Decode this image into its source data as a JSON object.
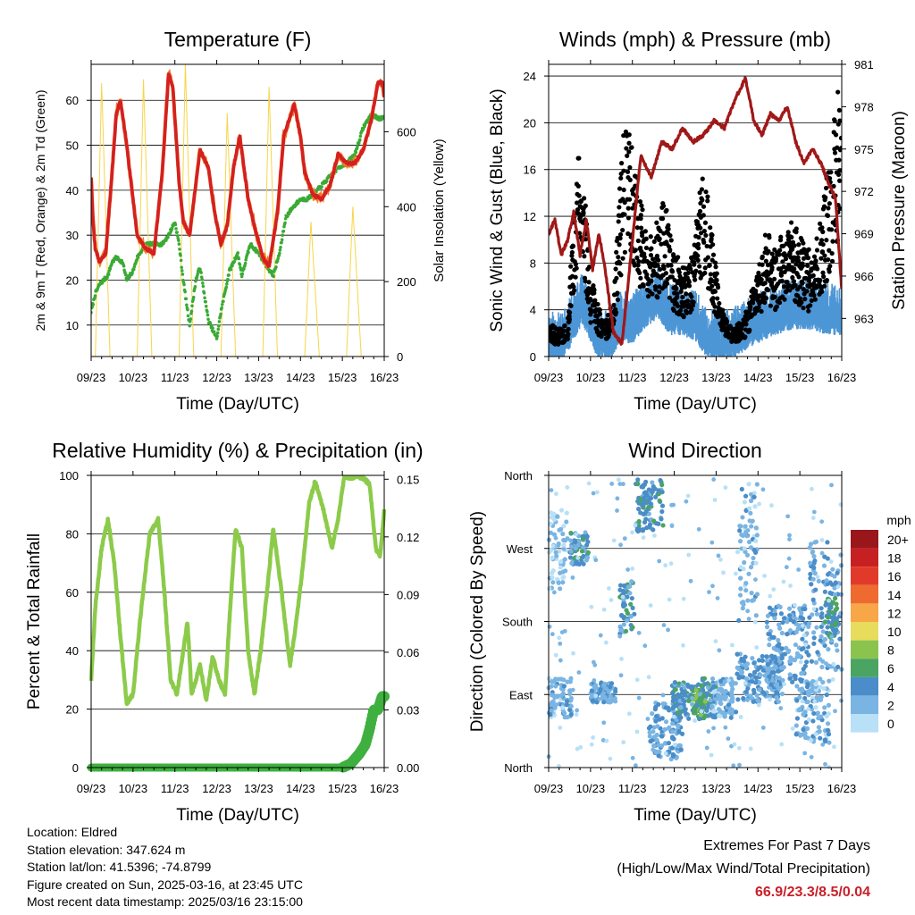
{
  "panels": {
    "temperature": {
      "title": "Temperature (F)",
      "xlabel": "Time (Day/UTC)",
      "ylabel_left": "2m & 9m T (Red, Orange) & 2m Td (Green)",
      "ylabel_right": "Solar Insolation (Yellow)"
    },
    "winds": {
      "title": "Winds (mph) & Pressure (mb)",
      "xlabel": "Time (Day/UTC)",
      "ylabel_left": "Sonic Wind & Gust (Blue, Black)",
      "ylabel_right": "Station Pressure (Maroon)"
    },
    "humidity": {
      "title": "Relative Humidity (%) & Precipitation (in)",
      "xlabel": "Time (Day/UTC)",
      "ylabel_left": "Percent & Total Rainfall"
    },
    "direction": {
      "title": "Wind Direction",
      "xlabel": "Time (Day/UTC)",
      "ylabel_left": "Direction (Colored By Speed)",
      "legend_title": "mph"
    }
  },
  "info": {
    "location": "Location: Eldred",
    "elevation": "Station elevation: 347.624 m",
    "latlon": "Station lat/lon: 41.5396; -74.8799",
    "created": "Figure created on Sun, 2025-03-16, at 23:45 UTC",
    "recent": "Most recent data timestamp: 2025/03/16 23:15:00"
  },
  "extremes": {
    "title": "Extremes For Past 7 Days",
    "subtitle": "(High/Low/Max Wind/Total Precipitation)",
    "values": "66.9/23.3/8.5/0.04"
  },
  "colors": {
    "temp_red": "#d42020",
    "temp_orange": "#f07a28",
    "dewpoint_green": "#3aaa35",
    "solar_yellow": "#f7d54a",
    "wind_blue": "#4d96d6",
    "gust_black": "#000000",
    "pressure_maroon": "#a01818",
    "rh_green": "#8ccb4a",
    "precip_green": "#3fb03f",
    "extremes_red": "#c8202a"
  },
  "chart_data": [
    {
      "type": "line",
      "title": "Temperature (F)",
      "xlabel": "Time (Day/UTC)",
      "ylabel": "2m & 9m T (Red, Orange) & 2m Td (Green)",
      "y2label": "Solar Insolation (Yellow)",
      "x_ticks": [
        "09/23",
        "10/23",
        "11/23",
        "12/23",
        "13/23",
        "14/23",
        "15/23",
        "16/23"
      ],
      "xlim": [
        0,
        7
      ],
      "ylim": [
        3,
        68
      ],
      "y_ticks": [
        10,
        20,
        30,
        40,
        50,
        60
      ],
      "y2lim": [
        0,
        780
      ],
      "y2_ticks": [
        0,
        200,
        400,
        600
      ],
      "grid": "horizontal",
      "series": [
        {
          "name": "2m & 9m T",
          "axis": "left",
          "color": "#d42020",
          "x": [
            0,
            0.04,
            0.1,
            0.2,
            0.35,
            0.5,
            0.6,
            0.7,
            0.85,
            1.0,
            1.1,
            1.3,
            1.5,
            1.7,
            1.85,
            1.95,
            2.1,
            2.2,
            2.35,
            2.6,
            2.8,
            2.95,
            3.1,
            3.25,
            3.4,
            3.55,
            3.75,
            3.9,
            4.1,
            4.25,
            4.45,
            4.6,
            4.85,
            5.0,
            5.1,
            5.3,
            5.5,
            5.7,
            5.9,
            6.1,
            6.3,
            6.5,
            6.7,
            6.85,
            6.95,
            7.0
          ],
          "y": [
            43,
            34,
            27,
            24,
            26,
            44,
            57,
            60,
            50,
            38,
            30,
            27,
            26,
            44,
            66,
            63,
            42,
            33,
            30,
            49,
            45,
            35,
            28,
            32,
            45,
            52,
            38,
            32,
            25,
            23,
            35,
            52,
            59,
            52,
            44,
            39,
            38,
            41,
            48,
            46,
            46,
            49,
            56,
            64,
            64,
            61
          ]
        },
        {
          "name": "2m Td",
          "axis": "left",
          "color": "#3aaa35",
          "x": [
            0,
            0.1,
            0.2,
            0.3,
            0.4,
            0.5,
            0.6,
            0.75,
            0.85,
            1.0,
            1.1,
            1.3,
            1.5,
            1.7,
            1.85,
            2.0,
            2.1,
            2.2,
            2.35,
            2.5,
            2.6,
            2.8,
            3.0,
            3.1,
            3.3,
            3.5,
            3.6,
            3.8,
            4.0,
            4.2,
            4.35,
            4.5,
            4.65,
            4.8,
            5.0,
            5.15,
            5.3,
            5.5,
            5.7,
            5.9,
            6.1,
            6.3,
            6.5,
            6.7,
            6.85,
            7.0
          ],
          "y": [
            13,
            17,
            19,
            20,
            21,
            24,
            25,
            24,
            20,
            22,
            25,
            28,
            28,
            28,
            30,
            33,
            28,
            20,
            10,
            20,
            23,
            11,
            7,
            13,
            22,
            26,
            21,
            28,
            26,
            23,
            21,
            26,
            34,
            36,
            38,
            38,
            39,
            41,
            43,
            45,
            46,
            48,
            54,
            57,
            56,
            56
          ]
        },
        {
          "name": "Solar Insolation",
          "axis": "right",
          "color": "#f7d54a",
          "x": [
            0.1,
            0.25,
            0.45,
            1.1,
            1.25,
            1.45,
            2.1,
            2.25,
            2.45,
            3.1,
            3.25,
            3.45,
            4.1,
            4.25,
            4.45,
            5.1,
            5.25,
            5.45,
            6.1,
            6.25,
            6.45
          ],
          "y": [
            0,
            730,
            0,
            0,
            740,
            0,
            0,
            780,
            0,
            0,
            650,
            0,
            0,
            720,
            0,
            0,
            360,
            0,
            0,
            400,
            0
          ]
        }
      ]
    },
    {
      "type": "scatter",
      "title": "Winds (mph) & Pressure (mb)",
      "xlabel": "Time (Day/UTC)",
      "ylabel": "Sonic Wind & Gust (Blue, Black)",
      "y2label": "Station Pressure (Maroon)",
      "x_ticks": [
        "09/23",
        "10/23",
        "11/23",
        "12/23",
        "13/23",
        "14/23",
        "15/23",
        "16/23"
      ],
      "xlim": [
        0,
        7
      ],
      "ylim": [
        0,
        25
      ],
      "y_ticks": [
        0,
        4,
        8,
        12,
        16,
        20,
        24
      ],
      "y2lim": [
        960.3,
        981
      ],
      "y2_ticks": [
        963,
        966,
        969,
        972,
        975,
        978,
        981
      ],
      "grid": "horizontal",
      "series": [
        {
          "name": "Sonic Wind",
          "axis": "left",
          "color": "#4d96d6",
          "x": [
            0,
            0.3,
            0.6,
            0.8,
            1.0,
            1.2,
            1.5,
            1.7,
            2.0,
            2.3,
            2.6,
            2.9,
            3.2,
            3.5,
            3.8,
            4.2,
            4.5,
            4.8,
            5.1,
            5.4,
            5.8,
            6.1,
            6.5,
            6.8,
            7.0
          ],
          "y": [
            0.8,
            0.6,
            2.5,
            4.0,
            2.5,
            0.7,
            1.0,
            2.5,
            2.2,
            3.5,
            4.5,
            3.0,
            3.0,
            2.5,
            1.0,
            0.8,
            1.2,
            2.0,
            2.5,
            3.0,
            3.5,
            3.5,
            3.2,
            3.0,
            3.0
          ]
        },
        {
          "name": "Gust",
          "axis": "left",
          "color": "#000000",
          "x": [
            0,
            0.2,
            0.45,
            0.7,
            0.85,
            1.0,
            1.3,
            1.55,
            1.8,
            2.05,
            2.3,
            2.5,
            2.75,
            3.0,
            3.2,
            3.45,
            3.7,
            3.9,
            4.1,
            4.4,
            4.7,
            4.95,
            5.2,
            5.45,
            5.7,
            5.95,
            6.2,
            6.45,
            6.7,
            6.9,
            7.0
          ],
          "y": [
            2.0,
            1.5,
            2.0,
            12.0,
            10.0,
            4.5,
            2.0,
            3.0,
            14.0,
            11.0,
            7.5,
            7.0,
            9.0,
            6.0,
            5.0,
            6.0,
            11.0,
            7.0,
            3.0,
            1.5,
            2.5,
            4.5,
            7.0,
            6.0,
            8.0,
            7.0,
            6.0,
            7.0,
            11.0,
            15.0,
            12.0
          ]
        },
        {
          "name": "Station Pressure",
          "axis": "right",
          "color": "#a01818",
          "x": [
            0,
            0.15,
            0.3,
            0.45,
            0.6,
            0.75,
            0.9,
            1.05,
            1.2,
            1.35,
            1.55,
            1.75,
            1.95,
            2.2,
            2.45,
            2.7,
            2.95,
            3.2,
            3.45,
            3.7,
            3.95,
            4.2,
            4.45,
            4.7,
            4.9,
            5.1,
            5.3,
            5.5,
            5.7,
            5.9,
            6.1,
            6.3,
            6.5,
            6.7,
            6.85,
            7.0
          ],
          "y": [
            969,
            970,
            967.5,
            968.5,
            970.5,
            967.5,
            970,
            966.5,
            969,
            966.5,
            962,
            961.2,
            967,
            974.5,
            973,
            975.5,
            975,
            976.5,
            975.5,
            976,
            977,
            976.5,
            978.5,
            980,
            977,
            976,
            977.5,
            977,
            978,
            975.5,
            974,
            975,
            974,
            972.5,
            971.5,
            965
          ]
        }
      ]
    },
    {
      "type": "line",
      "title": "Relative Humidity (%) & Precipitation (in)",
      "xlabel": "Time (Day/UTC)",
      "ylabel": "Percent & Total Rainfall",
      "x_ticks": [
        "09/23",
        "10/23",
        "11/23",
        "12/23",
        "13/23",
        "14/23",
        "15/23",
        "16/23"
      ],
      "xlim": [
        0,
        7
      ],
      "ylim": [
        0,
        100
      ],
      "y_ticks": [
        0,
        20,
        40,
        60,
        80,
        100
      ],
      "y2lim": [
        0,
        0.152
      ],
      "y2_ticks": [
        0.0,
        0.03,
        0.06,
        0.09,
        0.12,
        0.15
      ],
      "grid": "horizontal",
      "series": [
        {
          "name": "Relative Humidity",
          "axis": "left",
          "color": "#8ccb4a",
          "x": [
            0,
            0.1,
            0.25,
            0.4,
            0.55,
            0.7,
            0.85,
            1.0,
            1.2,
            1.4,
            1.6,
            1.75,
            1.9,
            2.05,
            2.2,
            2.3,
            2.4,
            2.5,
            2.6,
            2.75,
            2.9,
            3.05,
            3.2,
            3.3,
            3.45,
            3.6,
            3.75,
            3.9,
            4.05,
            4.2,
            4.35,
            4.55,
            4.75,
            4.9,
            5.05,
            5.2,
            5.35,
            5.55,
            5.75,
            5.9,
            6.05,
            6.2,
            6.35,
            6.5,
            6.65,
            6.8,
            6.9,
            7.0
          ],
          "y": [
            30,
            55,
            75,
            85,
            70,
            45,
            22,
            25,
            55,
            80,
            85,
            60,
            30,
            25,
            40,
            50,
            25,
            30,
            35,
            23,
            38,
            30,
            25,
            50,
            82,
            75,
            40,
            25,
            40,
            60,
            82,
            60,
            35,
            50,
            68,
            90,
            98,
            88,
            75,
            85,
            100,
            99,
            100,
            99,
            97,
            75,
            72,
            88
          ]
        },
        {
          "name": "Total Precipitation",
          "axis": "right",
          "color": "#3fb03f",
          "x": [
            0,
            1,
            2,
            3,
            4,
            5,
            6.0,
            6.2,
            6.4,
            6.55,
            6.65,
            6.75,
            6.85,
            6.95,
            7.0
          ],
          "y": [
            0,
            0,
            0,
            0,
            0,
            0,
            0,
            0.002,
            0.007,
            0.012,
            0.02,
            0.03,
            0.03,
            0.037,
            0.037
          ]
        }
      ]
    },
    {
      "type": "scatter",
      "title": "Wind Direction",
      "xlabel": "Time (Day/UTC)",
      "ylabel": "Direction (Colored By Speed)",
      "x_ticks": [
        "09/23",
        "10/23",
        "11/23",
        "12/23",
        "13/23",
        "14/23",
        "15/23",
        "16/23"
      ],
      "xlim": [
        0,
        7
      ],
      "y_ticks": [
        "North",
        "West",
        "South",
        "East",
        "North"
      ],
      "ylim": [
        0,
        360
      ],
      "grid": "horizontal",
      "legend": {
        "title": "mph",
        "labels": [
          "20+",
          "18",
          "16",
          "14",
          "12",
          "10",
          "8",
          "6",
          "4",
          "2",
          "0"
        ],
        "colors": [
          "#99161a",
          "#c72022",
          "#e23a2a",
          "#ee6a2e",
          "#f7a648",
          "#e7dc5c",
          "#8ac44e",
          "#4aa462",
          "#4a8dc8",
          "#7ab4e2",
          "#b8e0f6"
        ]
      },
      "clusters": [
        {
          "x": [
            0.0,
            0.55
          ],
          "y": [
            60,
            110
          ],
          "speed": 2
        },
        {
          "x": [
            0.0,
            0.45
          ],
          "y": [
            220,
            320
          ],
          "speed": 1
        },
        {
          "x": [
            0.5,
            0.95
          ],
          "y": [
            250,
            290
          ],
          "speed": 4
        },
        {
          "x": [
            1.0,
            1.6
          ],
          "y": [
            80,
            105
          ],
          "speed": 3
        },
        {
          "x": [
            1.7,
            2.05
          ],
          "y": [
            165,
            230
          ],
          "speed": 4
        },
        {
          "x": [
            2.05,
            2.75
          ],
          "y": [
            290,
            355
          ],
          "speed": 4
        },
        {
          "x": [
            2.4,
            3.2
          ],
          "y": [
            10,
            80
          ],
          "speed": 3
        },
        {
          "x": [
            2.95,
            4.0
          ],
          "y": [
            60,
            105
          ],
          "speed": 4
        },
        {
          "x": [
            3.4,
            3.75
          ],
          "y": [
            60,
            110
          ],
          "speed": 6
        },
        {
          "x": [
            3.9,
            4.5
          ],
          "y": [
            60,
            110
          ],
          "speed": 2
        },
        {
          "x": [
            4.5,
            5.0
          ],
          "y": [
            180,
            350
          ],
          "speed": 2
        },
        {
          "x": [
            4.5,
            5.6
          ],
          "y": [
            80,
            140
          ],
          "speed": 3
        },
        {
          "x": [
            5.2,
            6.2
          ],
          "y": [
            100,
            200
          ],
          "speed": 3
        },
        {
          "x": [
            5.9,
            6.7
          ],
          "y": [
            30,
            110
          ],
          "speed": 2
        },
        {
          "x": [
            6.2,
            7.0
          ],
          "y": [
            120,
            280
          ],
          "speed": 3
        },
        {
          "x": [
            6.6,
            6.9
          ],
          "y": [
            160,
            210
          ],
          "speed": 5
        }
      ]
    }
  ]
}
